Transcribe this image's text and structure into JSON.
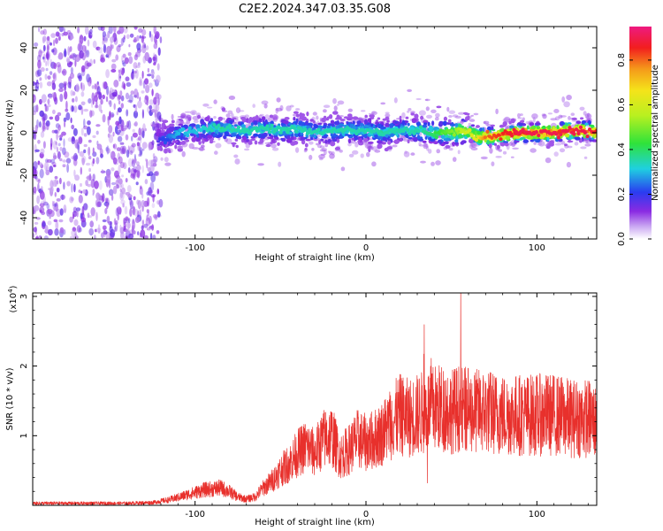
{
  "title": "C2E2.2024.347.03.35.G08",
  "chart_data": [
    {
      "type": "heatmap",
      "xlabel": "Height of straight line (km)",
      "ylabel": "Frequency (Hz)",
      "xlim": [
        -195,
        135
      ],
      "ylim": [
        -50,
        50
      ],
      "x_ticks": [
        -100,
        0,
        100
      ],
      "x_tick_labels": [
        "-100",
        "0",
        "100"
      ],
      "y_ticks": [
        -40,
        -20,
        0,
        20,
        40
      ],
      "y_tick_labels": [
        "-40",
        "-20",
        "0",
        "20",
        "40"
      ],
      "colorbar": {
        "label": "Normalized spectral amplitude",
        "range": [
          0,
          0.95
        ],
        "ticks": [
          0.0,
          0.2,
          0.4,
          0.6,
          0.8
        ],
        "tick_labels": [
          "0.0",
          "0.2",
          "0.4",
          "0.6",
          "0.8"
        ]
      },
      "ridge": {
        "x": [
          -120,
          -110,
          -100,
          -90,
          -80,
          -70,
          -60,
          -50,
          -40,
          -30,
          -20,
          -10,
          0,
          10,
          20,
          30,
          40,
          50,
          60,
          65,
          70,
          80,
          90,
          100,
          110,
          120,
          130,
          135
        ],
        "frequency": [
          -3,
          0,
          1,
          2,
          2,
          1,
          2,
          1,
          2,
          0,
          1,
          1,
          1,
          0,
          1,
          1,
          0,
          0,
          1,
          -2,
          -2,
          -1,
          0,
          0,
          0,
          1,
          1,
          0
        ],
        "amplitude": [
          0.2,
          0.3,
          0.3,
          0.35,
          0.35,
          0.35,
          0.35,
          0.35,
          0.35,
          0.35,
          0.35,
          0.35,
          0.35,
          0.35,
          0.35,
          0.35,
          0.4,
          0.5,
          0.6,
          0.65,
          0.8,
          0.85,
          0.9,
          0.9,
          0.9,
          0.9,
          0.9,
          0.85
        ]
      }
    },
    {
      "type": "line",
      "xlabel": "Height of straight line (km)",
      "ylabel": "SNR (10 * v/v)",
      "y_multiplier": "(x10",
      "y_multiplier_exp": "4",
      "y_multiplier_close": ")",
      "xlim": [
        -195,
        135
      ],
      "ylim": [
        0,
        3.05
      ],
      "x_ticks": [
        -100,
        0,
        100
      ],
      "x_tick_labels": [
        "-100",
        "0",
        "100"
      ],
      "y_ticks": [
        1,
        2,
        3
      ],
      "y_tick_labels": [
        "1",
        "2",
        "3"
      ],
      "color": "#e8302c",
      "series": [
        {
          "x": [
            -195,
            -170,
            -140,
            -125,
            -115,
            -105,
            -95,
            -85,
            -80,
            -75,
            -70,
            -65,
            -60,
            -55,
            -50,
            -45,
            -40,
            -35,
            -30,
            -25,
            -20,
            -15,
            -10,
            -5,
            0,
            5,
            10,
            15,
            20,
            25,
            30,
            35,
            40,
            45,
            50,
            55,
            60,
            65,
            70,
            80,
            90,
            100,
            110,
            120,
            130,
            135
          ],
          "y": [
            0.03,
            0.03,
            0.03,
            0.04,
            0.08,
            0.15,
            0.22,
            0.25,
            0.2,
            0.12,
            0.09,
            0.12,
            0.25,
            0.35,
            0.5,
            0.6,
            0.75,
            0.85,
            0.75,
            0.95,
            1.0,
            0.7,
            0.8,
            0.95,
            0.9,
            0.95,
            1.05,
            1.2,
            1.3,
            1.25,
            1.3,
            1.35,
            1.4,
            1.4,
            1.35,
            1.4,
            1.35,
            1.35,
            1.35,
            1.3,
            1.3,
            1.3,
            1.3,
            1.25,
            1.25,
            1.2
          ]
        }
      ]
    }
  ]
}
